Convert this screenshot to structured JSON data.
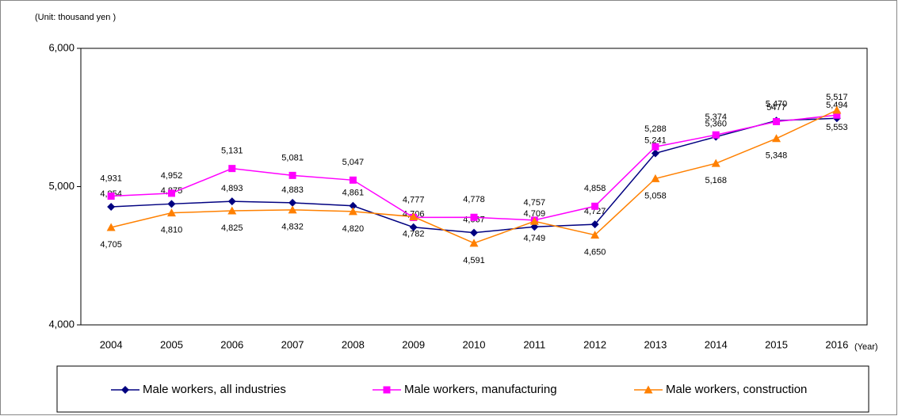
{
  "chart_data": {
    "type": "line",
    "unit_label": "(Unit: thousand yen )",
    "x_label": "(Year)",
    "categories": [
      "2004",
      "2005",
      "2006",
      "2007",
      "2008",
      "2009",
      "2010",
      "2011",
      "2012",
      "2013",
      "2014",
      "2015",
      "2016"
    ],
    "ylim": [
      4000,
      6000
    ],
    "yticks": [
      {
        "value": 4000,
        "label": "4,000"
      },
      {
        "value": 5000,
        "label": "5,000"
      },
      {
        "value": 6000,
        "label": "6,000"
      }
    ],
    "legend": "bottom",
    "series": [
      {
        "name": "Male workers, all industries",
        "color": "#000080",
        "marker": "diamond",
        "values": [
          4854,
          4875,
          4893,
          4883,
          4861,
          4706,
          4667,
          4709,
          4727,
          5241,
          5360,
          5477,
          5494
        ],
        "value_labels": [
          "4,854",
          "4,875",
          "4,893",
          "4,883",
          "4,861",
          "4,706",
          "4,667",
          "4,709",
          "4,727",
          "5,241",
          "5,360",
          "5477",
          "5,494"
        ]
      },
      {
        "name": "Male workers, manufacturing",
        "color": "#ff00ff",
        "marker": "square",
        "values": [
          4931,
          4952,
          5131,
          5081,
          5047,
          4777,
          4778,
          4757,
          4858,
          5288,
          5374,
          5470,
          5517
        ],
        "value_labels": [
          "4,931",
          "4,952",
          "5,131",
          "5,081",
          "5,047",
          "4,777",
          "4,778",
          "4,757",
          "4,858",
          "5,288",
          "5,374",
          "5,470",
          "5,517"
        ]
      },
      {
        "name": "Male workers, construction",
        "color": "#ff8000",
        "marker": "triangle",
        "values": [
          4705,
          4810,
          4825,
          4832,
          4820,
          4782,
          4591,
          4749,
          4650,
          5058,
          5168,
          5348,
          5553
        ],
        "value_labels": [
          "4,705",
          "4,810",
          "4,825",
          "4,832",
          "4,820",
          "4,782",
          "4,591",
          "4,749",
          "4,650",
          "5,058",
          "5,168",
          "5,348",
          "5,553"
        ]
      }
    ]
  }
}
